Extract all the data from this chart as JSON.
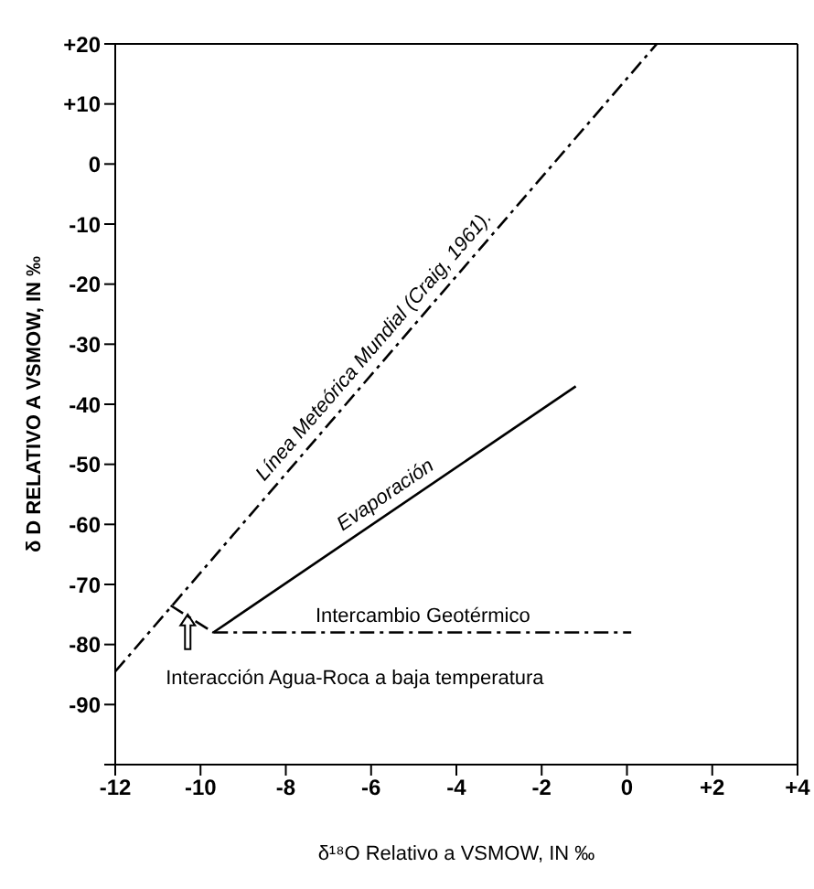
{
  "chart_data": {
    "type": "line",
    "xlabel": "δ¹⁸O  Relativo a VSMOW, IN ‰",
    "ylabel": "δ D RELATIVO A VSMOW, IN ‰",
    "xlim": [
      -12,
      4
    ],
    "xticks": [
      -12,
      -10,
      -8,
      -6,
      -4,
      -2,
      0,
      {
        "value": 2,
        "label": "+2"
      },
      {
        "value": 4,
        "label": "+4"
      }
    ],
    "ylim": [
      -100,
      20
    ],
    "yticks": [
      {
        "value": 20,
        "label": "+20"
      },
      {
        "value": 10,
        "label": "+10"
      },
      0,
      -10,
      -20,
      -30,
      -40,
      -50,
      -60,
      -70,
      -80,
      -90,
      {
        "value": -100,
        "label": null
      }
    ],
    "marker": "none",
    "series": [
      {
        "name": "Línea Meteórica Mundial (Craig, 1961).",
        "color": "#000000",
        "line_style": "dashed",
        "x": [
          -12,
          0.7
        ],
        "values": [
          -84.5,
          20
        ]
      },
      {
        "name": "Evaporación",
        "color": "#000000",
        "line_style": "solid",
        "x": [
          -9.7,
          -1.2
        ],
        "values": [
          -78,
          -37
        ]
      },
      {
        "name": "Intercambio Geotérmico",
        "color": "#000000",
        "line_style": "dashed",
        "x": [
          -9.7,
          0.1
        ],
        "values": [
          -78,
          -78
        ]
      },
      {
        "color": "#000000",
        "line_style": "dashed",
        "x": [
          -10.7,
          -9.7
        ],
        "values": [
          -73.5,
          -78
        ]
      }
    ],
    "annotations": [
      {
        "text": "Interacción Agua-Roca a baja temperatura",
        "x": -10.3,
        "y": -75
      }
    ]
  }
}
